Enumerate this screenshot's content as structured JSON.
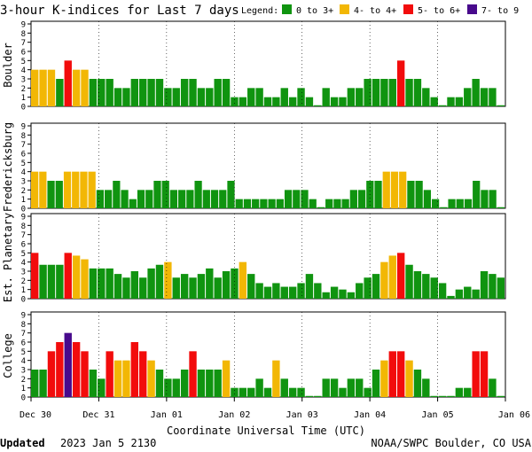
{
  "chart_data": {
    "type": "bar",
    "title": "3-hour K-indices for Last 7 days",
    "legend": {
      "title": "Legend:",
      "entries": [
        {
          "label": "0 to 3+",
          "color": "#109410"
        },
        {
          "label": "4- to 4+",
          "color": "#f2b705"
        },
        {
          "label": "5- to 6+",
          "color": "#f20c0c"
        },
        {
          "label": "7- to 9",
          "color": "#480a8c"
        }
      ]
    },
    "x_tick_labels": [
      "Dec 30",
      "Dec 31",
      "Jan 01",
      "Jan 02",
      "Jan 03",
      "Jan 04",
      "Jan 05",
      "Jan 06"
    ],
    "xlabel": "Coordinate Universal Time (UTC)",
    "ylim": [
      0,
      9
    ],
    "yticks": [
      0,
      1,
      2,
      3,
      4,
      5,
      6,
      7,
      8,
      9
    ],
    "series": [
      {
        "name": "Boulder",
        "values": [
          4,
          4,
          4,
          3,
          5,
          4,
          4,
          3,
          3,
          3,
          2,
          2,
          3,
          3,
          3,
          3,
          2,
          2,
          3,
          3,
          2,
          2,
          3,
          3,
          1,
          1,
          2,
          2,
          1,
          1,
          2,
          1,
          2,
          1,
          0,
          2,
          1,
          1,
          2,
          2,
          3,
          3,
          3,
          3,
          5,
          3,
          3,
          2,
          1,
          0,
          1,
          1,
          2,
          3,
          2,
          2,
          0
        ]
      },
      {
        "name": "Fredericksburg",
        "values": [
          4,
          4,
          3,
          3,
          4,
          4,
          4,
          4,
          2,
          2,
          3,
          2,
          1,
          2,
          2,
          3,
          3,
          2,
          2,
          2,
          3,
          2,
          2,
          2,
          3,
          1,
          1,
          1,
          1,
          1,
          1,
          2,
          2,
          2,
          1,
          0,
          1,
          1,
          1,
          2,
          2,
          3,
          3,
          4,
          4,
          4,
          3,
          3,
          2,
          1,
          0,
          1,
          1,
          1,
          3,
          2,
          2,
          0
        ]
      },
      {
        "name": "Est. Planetary",
        "values": [
          5,
          3.7,
          3.7,
          3.7,
          5,
          4.7,
          4.3,
          3.3,
          3.3,
          3.3,
          2.7,
          2.3,
          3,
          2.3,
          3.3,
          3.7,
          4,
          2.3,
          2.7,
          2.3,
          2.7,
          3.3,
          2.3,
          3,
          3.3,
          4,
          2.7,
          1.7,
          1.3,
          1.7,
          1.3,
          1.3,
          1.7,
          2.7,
          1.7,
          0.7,
          1.3,
          1,
          0.7,
          1.7,
          2.3,
          2.7,
          4,
          4.7,
          5,
          3.7,
          3,
          2.7,
          2.3,
          1.7,
          0.3,
          1,
          1.3,
          1,
          3,
          2.7,
          2.3
        ]
      },
      {
        "name": "College",
        "values": [
          3,
          3,
          5,
          6,
          7,
          6,
          5,
          3,
          2,
          5,
          4,
          4,
          6,
          5,
          4,
          3,
          2,
          2,
          3,
          5,
          3,
          3,
          3,
          4,
          1,
          1,
          1,
          2,
          1,
          4,
          2,
          1,
          1,
          0,
          0,
          2,
          2,
          1,
          2,
          2,
          1,
          3,
          4,
          5,
          5,
          4,
          3,
          2,
          0,
          0,
          0,
          1,
          1,
          5,
          5,
          2,
          0
        ]
      }
    ]
  },
  "footer": {
    "updated_label": "Updated",
    "updated_value": "2023 Jan  5 2130",
    "source": "NOAA/SWPC Boulder, CO USA"
  }
}
